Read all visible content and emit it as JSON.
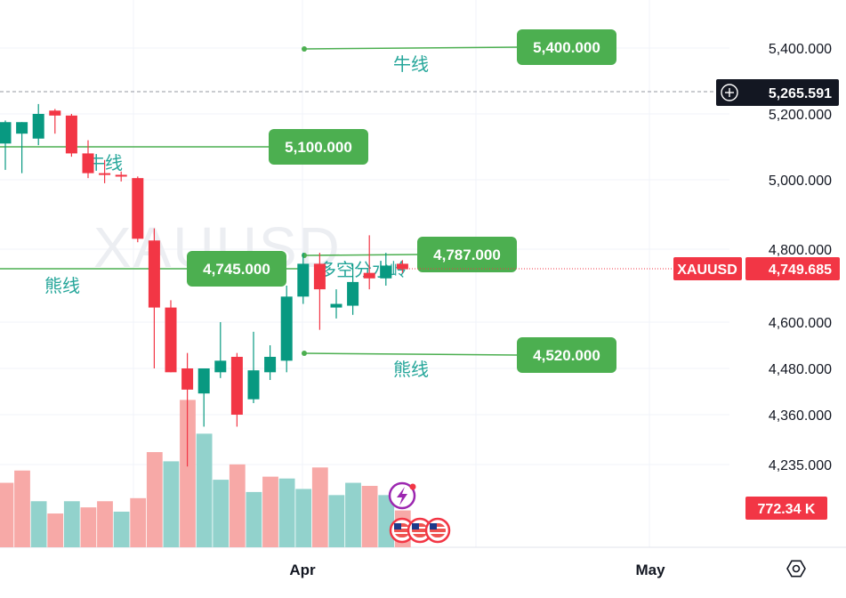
{
  "chart_data": {
    "type": "candlestick",
    "symbol": "XAUUSD",
    "y_axis": {
      "ticks": [
        5400,
        5200,
        5000,
        4800,
        4600,
        4480,
        4360,
        4235
      ],
      "tick_labels": [
        "5,400.000",
        "5,200.000",
        "5,000.000",
        "4,800.000",
        "4,600.000",
        "4,480.000",
        "4,360.000",
        "4,235.000"
      ],
      "scale": "non-linear (compressed toward bottom)"
    },
    "x_axis": {
      "tick_labels": [
        "Apr",
        "May"
      ]
    },
    "current_price": {
      "label": "XAUUSD",
      "value": "4,749.685",
      "color": "#f23645"
    },
    "crosshair_price": {
      "value": "5,265.591"
    },
    "volume_label": {
      "value": "772.34 K"
    },
    "levels": [
      {
        "price": 5400,
        "label": "5,400.000",
        "caption": "牛线"
      },
      {
        "price": 5100,
        "label": "5,100.000",
        "caption": "牛线"
      },
      {
        "price": 4787,
        "label": "4,787.000",
        "caption": "多空分水岭"
      },
      {
        "price": 4745,
        "label": "4,745.000",
        "caption": "熊线"
      },
      {
        "price": 4520,
        "label": "4,520.000",
        "caption": "熊线"
      }
    ],
    "candles": [
      {
        "o": 5110,
        "h": 5180,
        "l": 5030,
        "c": 5175
      },
      {
        "o": 5140,
        "h": 5175,
        "l": 5020,
        "c": 5175
      },
      {
        "o": 5125,
        "h": 5230,
        "l": 5105,
        "c": 5200
      },
      {
        "o": 5210,
        "h": 5215,
        "l": 5140,
        "c": 5195
      },
      {
        "o": 5195,
        "h": 5200,
        "l": 5070,
        "c": 5080
      },
      {
        "o": 5080,
        "h": 5120,
        "l": 5005,
        "c": 5020
      },
      {
        "o": 5020,
        "h": 5060,
        "l": 4990,
        "c": 5015
      },
      {
        "o": 5015,
        "h": 5025,
        "l": 4995,
        "c": 5010
      },
      {
        "o": 5005,
        "h": 5010,
        "l": 4820,
        "c": 4830
      },
      {
        "o": 4825,
        "h": 4860,
        "l": 4480,
        "c": 4640
      },
      {
        "o": 4640,
        "h": 4660,
        "l": 4470,
        "c": 4470
      },
      {
        "o": 4480,
        "h": 4520,
        "l": 4230,
        "c": 4425
      },
      {
        "o": 4415,
        "h": 4470,
        "l": 4330,
        "c": 4480
      },
      {
        "o": 4470,
        "h": 4600,
        "l": 4455,
        "c": 4500
      },
      {
        "o": 4510,
        "h": 4520,
        "l": 4330,
        "c": 4360
      },
      {
        "o": 4400,
        "h": 4575,
        "l": 4390,
        "c": 4475
      },
      {
        "o": 4470,
        "h": 4540,
        "l": 4450,
        "c": 4510
      },
      {
        "o": 4500,
        "h": 4700,
        "l": 4470,
        "c": 4670
      },
      {
        "o": 4670,
        "h": 4790,
        "l": 4650,
        "c": 4760
      },
      {
        "o": 4760,
        "h": 4790,
        "l": 4580,
        "c": 4690
      },
      {
        "o": 4640,
        "h": 4690,
        "l": 4610,
        "c": 4650
      },
      {
        "o": 4645,
        "h": 4760,
        "l": 4620,
        "c": 4710
      },
      {
        "o": 4735,
        "h": 4840,
        "l": 4690,
        "c": 4720
      },
      {
        "o": 4720,
        "h": 4790,
        "l": 4700,
        "c": 4755
      },
      {
        "o": 4760,
        "h": 4770,
        "l": 4735,
        "c": 4745
      }
    ],
    "volumes": [
      {
        "v": 105,
        "up": false
      },
      {
        "v": 125,
        "up": false
      },
      {
        "v": 75,
        "up": true
      },
      {
        "v": 55,
        "up": false
      },
      {
        "v": 75,
        "up": true
      },
      {
        "v": 65,
        "up": false
      },
      {
        "v": 75,
        "up": false
      },
      {
        "v": 58,
        "up": true
      },
      {
        "v": 80,
        "up": false
      },
      {
        "v": 155,
        "up": false
      },
      {
        "v": 140,
        "up": true
      },
      {
        "v": 240,
        "up": false
      },
      {
        "v": 185,
        "up": true
      },
      {
        "v": 110,
        "up": true
      },
      {
        "v": 135,
        "up": false
      },
      {
        "v": 90,
        "up": true
      },
      {
        "v": 115,
        "up": false
      },
      {
        "v": 112,
        "up": true
      },
      {
        "v": 95,
        "up": true
      },
      {
        "v": 130,
        "up": false
      },
      {
        "v": 85,
        "up": true
      },
      {
        "v": 105,
        "up": true
      },
      {
        "v": 100,
        "up": false
      },
      {
        "v": 85,
        "up": true
      },
      {
        "v": 60,
        "up": false
      }
    ]
  },
  "colors": {
    "up": "#089981",
    "down": "#f23645",
    "vol_up": "#92d2cc",
    "vol_down": "#f7a9a7",
    "level": "#4caf50",
    "caption": "#26a69a"
  },
  "watermark": "XAUUSD",
  "icons": [
    "plus-circle-icon",
    "lightning-event-icon",
    "us-flag-icon",
    "settings-hexagon-icon"
  ]
}
